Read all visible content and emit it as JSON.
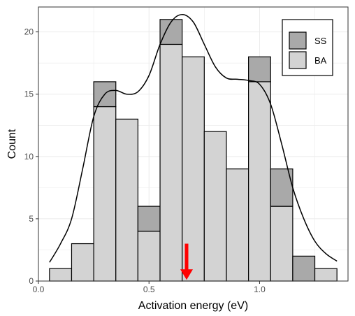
{
  "chart_data": {
    "type": "bar",
    "subtype": "stacked-histogram",
    "xlabel": "Activation energy (eV)",
    "ylabel": "Count",
    "xlim": [
      0.0,
      1.4
    ],
    "ylim": [
      0,
      22
    ],
    "x_ticks": [
      0.0,
      0.5,
      1.0
    ],
    "x_tick_labels": [
      "0.0",
      "0.5",
      "1.0"
    ],
    "y_ticks": [
      0,
      5,
      10,
      15,
      20
    ],
    "y_tick_labels": [
      "0",
      "5",
      "10",
      "15",
      "20"
    ],
    "bin_width": 0.1,
    "bin_centers": [
      0.1,
      0.2,
      0.3,
      0.4,
      0.5,
      0.6,
      0.7,
      0.8,
      0.9,
      1.0,
      1.1,
      1.2,
      1.3
    ],
    "series": [
      {
        "name": "BA",
        "color": "#d3d3d3",
        "values": [
          1,
          3,
          14,
          13,
          4,
          19,
          18,
          12,
          9,
          16,
          6,
          0,
          1
        ]
      },
      {
        "name": "SS",
        "color": "#a9a9a9",
        "values": [
          0,
          0,
          2,
          0,
          2,
          2,
          0,
          0,
          0,
          2,
          3,
          2,
          0
        ]
      }
    ],
    "density_curve": {
      "color": "#000000",
      "x": [
        0.05,
        0.1,
        0.15,
        0.2,
        0.25,
        0.3,
        0.35,
        0.4,
        0.45,
        0.5,
        0.55,
        0.6,
        0.65,
        0.7,
        0.75,
        0.8,
        0.85,
        0.9,
        0.95,
        1.0,
        1.05,
        1.1,
        1.15,
        1.2,
        1.25,
        1.3,
        1.35
      ],
      "y": [
        1.5,
        3.0,
        5.0,
        9.0,
        13.2,
        15.0,
        15.3,
        15.0,
        15.2,
        16.5,
        19.0,
        20.8,
        21.4,
        20.8,
        19.0,
        17.2,
        16.3,
        16.2,
        16.1,
        15.8,
        14.2,
        11.0,
        7.5,
        5.0,
        3.2,
        2.2,
        1.6
      ]
    },
    "annotation": {
      "type": "arrow",
      "x": 0.67,
      "y_from": 3.0,
      "y_to": 0.1,
      "color": "#ff0000"
    },
    "grid": true,
    "legend_position": "top-right",
    "legend_order": [
      "SS",
      "BA"
    ]
  }
}
